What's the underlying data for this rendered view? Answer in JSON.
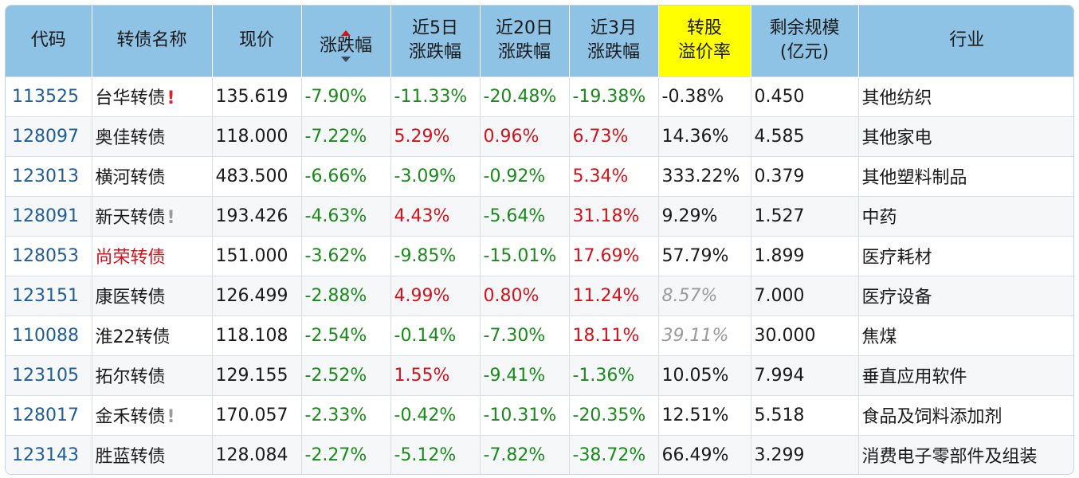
{
  "headers": [
    {
      "l1": "代码",
      "l2": ""
    },
    {
      "l1": "转债名称",
      "l2": ""
    },
    {
      "l1": "现价",
      "l2": ""
    },
    {
      "l1": "涨跌幅",
      "l2": ""
    },
    {
      "l1": "近5日",
      "l2": "涨跌幅"
    },
    {
      "l1": "近20日",
      "l2": "涨跌幅"
    },
    {
      "l1": "近3月",
      "l2": "涨跌幅"
    },
    {
      "l1": "转股",
      "l2": "溢价率"
    },
    {
      "l1": "剩余规模",
      "l2": "(亿元)"
    },
    {
      "l1": "行业",
      "l2": ""
    }
  ],
  "highlight_color": "#ffff00",
  "rows": [
    {
      "code": "113525",
      "name": "台华转债",
      "mark": "!",
      "mark_color": "red",
      "name_color": "normal",
      "price": "135.619",
      "chg": "-7.90%",
      "chg_c": "neg",
      "d5": "-11.33%",
      "d5_c": "neg",
      "d20": "-20.48%",
      "d20_c": "neg",
      "m3": "-19.38%",
      "m3_c": "neg",
      "prem": "-0.38%",
      "prem_c": "neutral",
      "size": "0.450",
      "industry": "其他纺织"
    },
    {
      "code": "128097",
      "name": "奥佳转债",
      "mark": "",
      "mark_color": "",
      "name_color": "normal",
      "price": "118.000",
      "chg": "-7.22%",
      "chg_c": "neg",
      "d5": "5.29%",
      "d5_c": "pos",
      "d20": "0.96%",
      "d20_c": "pos",
      "m3": "6.73%",
      "m3_c": "pos",
      "prem": "14.36%",
      "prem_c": "neutral",
      "size": "4.585",
      "industry": "其他家电"
    },
    {
      "code": "123013",
      "name": "横河转债",
      "mark": "",
      "mark_color": "",
      "name_color": "normal",
      "price": "483.500",
      "chg": "-6.66%",
      "chg_c": "neg",
      "d5": "-3.09%",
      "d5_c": "neg",
      "d20": "-0.92%",
      "d20_c": "neg",
      "m3": "5.34%",
      "m3_c": "pos",
      "prem": "333.22%",
      "prem_c": "neutral",
      "size": "0.379",
      "industry": "其他塑料制品"
    },
    {
      "code": "128091",
      "name": "新天转债",
      "mark": "!",
      "mark_color": "gray",
      "name_color": "normal",
      "price": "193.426",
      "chg": "-4.63%",
      "chg_c": "neg",
      "d5": "4.43%",
      "d5_c": "pos",
      "d20": "-5.64%",
      "d20_c": "neg",
      "m3": "31.18%",
      "m3_c": "pos",
      "prem": "9.29%",
      "prem_c": "neutral",
      "size": "1.527",
      "industry": "中药"
    },
    {
      "code": "128053",
      "name": "尚荣转债",
      "mark": "",
      "mark_color": "",
      "name_color": "red",
      "price": "151.000",
      "chg": "-3.62%",
      "chg_c": "neg",
      "d5": "-9.85%",
      "d5_c": "neg",
      "d20": "-15.01%",
      "d20_c": "neg",
      "m3": "17.69%",
      "m3_c": "pos",
      "prem": "57.79%",
      "prem_c": "neutral",
      "size": "1.899",
      "industry": "医疗耗材"
    },
    {
      "code": "123151",
      "name": "康医转债",
      "mark": "",
      "mark_color": "",
      "name_color": "normal",
      "price": "126.499",
      "chg": "-2.88%",
      "chg_c": "neg",
      "d5": "4.99%",
      "d5_c": "pos",
      "d20": "0.80%",
      "d20_c": "pos",
      "m3": "11.24%",
      "m3_c": "pos",
      "prem": "8.57%",
      "prem_c": "gray-italic",
      "size": "7.000",
      "industry": "医疗设备"
    },
    {
      "code": "110088",
      "name": "淮22转债",
      "mark": "",
      "mark_color": "",
      "name_color": "normal",
      "price": "118.108",
      "chg": "-2.54%",
      "chg_c": "neg",
      "d5": "-0.14%",
      "d5_c": "neg",
      "d20": "-7.30%",
      "d20_c": "neg",
      "m3": "18.11%",
      "m3_c": "pos",
      "prem": "39.11%",
      "prem_c": "gray-italic",
      "size": "30.000",
      "industry": "焦煤"
    },
    {
      "code": "123105",
      "name": "拓尔转债",
      "mark": "",
      "mark_color": "",
      "name_color": "normal",
      "price": "129.155",
      "chg": "-2.52%",
      "chg_c": "neg",
      "d5": "1.55%",
      "d5_c": "pos",
      "d20": "-9.41%",
      "d20_c": "neg",
      "m3": "-1.36%",
      "m3_c": "neg",
      "prem": "10.05%",
      "prem_c": "neutral",
      "size": "7.994",
      "industry": "垂直应用软件"
    },
    {
      "code": "128017",
      "name": "金禾转债",
      "mark": "!",
      "mark_color": "gray",
      "name_color": "normal",
      "price": "170.057",
      "chg": "-2.33%",
      "chg_c": "neg",
      "d5": "-0.42%",
      "d5_c": "neg",
      "d20": "-10.31%",
      "d20_c": "neg",
      "m3": "-20.35%",
      "m3_c": "neg",
      "prem": "12.51%",
      "prem_c": "neutral",
      "size": "5.518",
      "industry": "食品及饲料添加剂"
    },
    {
      "code": "123143",
      "name": "胜蓝转债",
      "mark": "",
      "mark_color": "",
      "name_color": "normal",
      "price": "128.084",
      "chg": "-2.27%",
      "chg_c": "neg",
      "d5": "-5.12%",
      "d5_c": "neg",
      "d20": "-7.82%",
      "d20_c": "neg",
      "m3": "-38.72%",
      "m3_c": "neg",
      "prem": "66.49%",
      "prem_c": "neutral",
      "size": "3.299",
      "industry": "消费电子零部件及组装"
    }
  ]
}
